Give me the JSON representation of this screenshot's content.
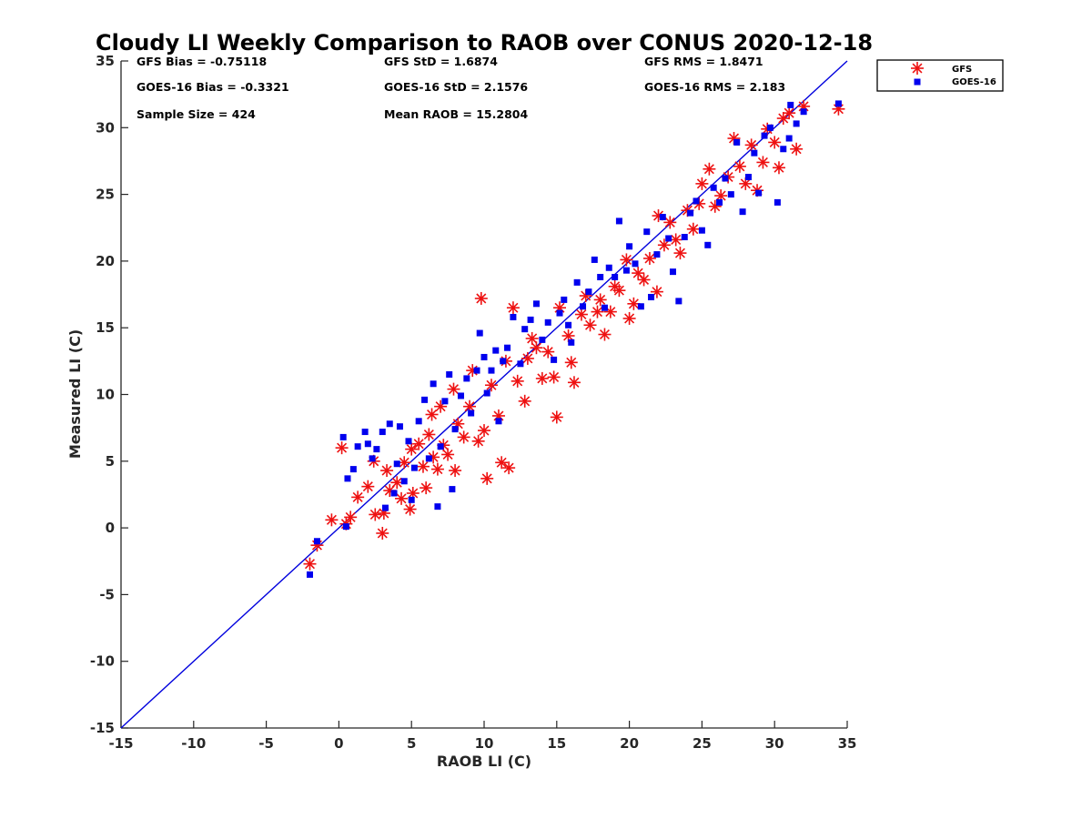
{
  "chart_data": {
    "type": "scatter",
    "title": "Cloudy LI Weekly Comparison to RAOB over CONUS 2020-12-18",
    "xlabel": "RAOB LI (C)",
    "ylabel": "Measured LI (C)",
    "xlim": [
      -15,
      35
    ],
    "ylim": [
      -15,
      35
    ],
    "xticks": [
      "-15",
      "-10",
      "-5",
      "0",
      "5",
      "10",
      "15",
      "20",
      "25",
      "30",
      "35"
    ],
    "yticks": [
      "-15",
      "-10",
      "-5",
      "0",
      "5",
      "10",
      "15",
      "20",
      "25",
      "30",
      "35"
    ],
    "grid": false,
    "legend_position": "outside-top-right",
    "reference_line": {
      "label": "1:1",
      "color": "#0000dd"
    },
    "stats": {
      "col1": [
        "GFS Bias = -0.75118",
        "GOES-16 Bias = -0.3321",
        "Sample Size = 424"
      ],
      "col2": [
        "GFS StD = 1.6874",
        "GOES-16 StD = 2.1576",
        "Mean RAOB = 15.2804"
      ],
      "col3": [
        "GFS RMS = 1.8471",
        "GOES-16 RMS = 2.183"
      ]
    },
    "series": [
      {
        "name": "GFS",
        "marker": "asterisk",
        "color": "#ee1111",
        "points": [
          [
            -2,
            -2.7
          ],
          [
            -1.5,
            -1.3
          ],
          [
            -0.5,
            0.6
          ],
          [
            0.2,
            6
          ],
          [
            0.5,
            0.3
          ],
          [
            0.8,
            0.8
          ],
          [
            1.3,
            2.3
          ],
          [
            2,
            3.1
          ],
          [
            2.4,
            5
          ],
          [
            2.5,
            1
          ],
          [
            3,
            -0.4
          ],
          [
            3.1,
            1.1
          ],
          [
            3.3,
            4.3
          ],
          [
            3.5,
            2.8
          ],
          [
            4,
            3.4
          ],
          [
            4.3,
            2.2
          ],
          [
            4.5,
            4.9
          ],
          [
            4.9,
            1.4
          ],
          [
            5,
            5.9
          ],
          [
            5.1,
            2.6
          ],
          [
            5.5,
            6.3
          ],
          [
            5.8,
            4.6
          ],
          [
            6,
            3
          ],
          [
            6.2,
            7
          ],
          [
            6.4,
            8.5
          ],
          [
            6.5,
            5.3
          ],
          [
            6.8,
            4.4
          ],
          [
            7,
            9.1
          ],
          [
            7.2,
            6.2
          ],
          [
            7.5,
            5.5
          ],
          [
            7.9,
            10.4
          ],
          [
            8,
            4.3
          ],
          [
            8.2,
            7.8
          ],
          [
            8.6,
            6.8
          ],
          [
            9,
            9.1
          ],
          [
            9.2,
            11.8
          ],
          [
            9.6,
            6.5
          ],
          [
            9.8,
            17.2
          ],
          [
            10,
            7.3
          ],
          [
            10.2,
            3.7
          ],
          [
            10.5,
            10.7
          ],
          [
            11,
            8.4
          ],
          [
            11.2,
            4.9
          ],
          [
            11.5,
            12.5
          ],
          [
            11.7,
            4.5
          ],
          [
            12,
            16.5
          ],
          [
            12.3,
            11
          ],
          [
            12.8,
            9.5
          ],
          [
            13,
            12.7
          ],
          [
            13.3,
            14.2
          ],
          [
            13.6,
            13.5
          ],
          [
            14,
            11.2
          ],
          [
            14.4,
            13.2
          ],
          [
            14.8,
            11.3
          ],
          [
            15,
            8.3
          ],
          [
            15.2,
            16.5
          ],
          [
            15.8,
            14.4
          ],
          [
            16,
            12.4
          ],
          [
            16.2,
            10.9
          ],
          [
            16.7,
            16
          ],
          [
            17,
            17.4
          ],
          [
            17.3,
            15.2
          ],
          [
            17.8,
            16.2
          ],
          [
            18,
            17.1
          ],
          [
            18.3,
            14.5
          ],
          [
            18.7,
            16.2
          ],
          [
            19,
            18.1
          ],
          [
            19.3,
            17.8
          ],
          [
            19.8,
            20.1
          ],
          [
            20,
            15.7
          ],
          [
            20.3,
            16.8
          ],
          [
            20.6,
            19.1
          ],
          [
            21,
            18.6
          ],
          [
            21.4,
            20.2
          ],
          [
            21.9,
            17.7
          ],
          [
            22,
            23.4
          ],
          [
            22.4,
            21.2
          ],
          [
            22.8,
            22.9
          ],
          [
            23.2,
            21.6
          ],
          [
            23.5,
            20.6
          ],
          [
            24,
            23.8
          ],
          [
            24.4,
            22.4
          ],
          [
            24.8,
            24.3
          ],
          [
            25,
            25.8
          ],
          [
            25.5,
            26.9
          ],
          [
            25.9,
            24.1
          ],
          [
            26.3,
            24.9
          ],
          [
            26.8,
            26.3
          ],
          [
            27.2,
            29.2
          ],
          [
            27.6,
            27.1
          ],
          [
            28,
            25.8
          ],
          [
            28.4,
            28.7
          ],
          [
            28.8,
            25.3
          ],
          [
            29.2,
            27.4
          ],
          [
            29.5,
            29.9
          ],
          [
            30,
            28.9
          ],
          [
            30.3,
            27
          ],
          [
            30.6,
            30.7
          ],
          [
            31,
            31.1
          ],
          [
            31.5,
            28.4
          ],
          [
            32,
            31.6
          ],
          [
            34.4,
            31.4
          ]
        ]
      },
      {
        "name": "GOES-16",
        "marker": "square",
        "color": "#0000ee",
        "points": [
          [
            -2,
            -3.5
          ],
          [
            -1.5,
            -1
          ],
          [
            0.3,
            6.8
          ],
          [
            0.5,
            0.1
          ],
          [
            0.6,
            3.7
          ],
          [
            1,
            4.4
          ],
          [
            1.3,
            6.1
          ],
          [
            1.8,
            7.2
          ],
          [
            2,
            6.3
          ],
          [
            2.3,
            5.2
          ],
          [
            2.6,
            5.9
          ],
          [
            3,
            7.2
          ],
          [
            3.2,
            1.5
          ],
          [
            3.5,
            7.8
          ],
          [
            3.8,
            2.6
          ],
          [
            4,
            4.8
          ],
          [
            4.2,
            7.6
          ],
          [
            4.5,
            3.5
          ],
          [
            4.8,
            6.5
          ],
          [
            5,
            2.1
          ],
          [
            5.2,
            4.5
          ],
          [
            5.5,
            8
          ],
          [
            5.9,
            9.6
          ],
          [
            6.2,
            5.2
          ],
          [
            6.5,
            10.8
          ],
          [
            6.8,
            1.6
          ],
          [
            7,
            6.1
          ],
          [
            7.3,
            9.5
          ],
          [
            7.6,
            11.5
          ],
          [
            7.8,
            2.9
          ],
          [
            8,
            7.4
          ],
          [
            8.4,
            9.9
          ],
          [
            8.8,
            11.2
          ],
          [
            9.1,
            8.6
          ],
          [
            9.5,
            11.8
          ],
          [
            9.7,
            14.6
          ],
          [
            10,
            12.8
          ],
          [
            10.2,
            10.1
          ],
          [
            10.5,
            11.8
          ],
          [
            10.8,
            13.3
          ],
          [
            11,
            8
          ],
          [
            11.3,
            12.5
          ],
          [
            11.6,
            13.5
          ],
          [
            12,
            15.8
          ],
          [
            12.5,
            12.3
          ],
          [
            12.8,
            14.9
          ],
          [
            13.2,
            15.6
          ],
          [
            13.6,
            16.8
          ],
          [
            14,
            14.1
          ],
          [
            14.4,
            15.4
          ],
          [
            14.8,
            12.6
          ],
          [
            15.2,
            16.1
          ],
          [
            15.5,
            17.1
          ],
          [
            15.8,
            15.2
          ],
          [
            16,
            13.9
          ],
          [
            16.4,
            18.4
          ],
          [
            16.8,
            16.6
          ],
          [
            17.2,
            17.7
          ],
          [
            17.6,
            20.1
          ],
          [
            18,
            18.8
          ],
          [
            18.3,
            16.5
          ],
          [
            18.6,
            19.5
          ],
          [
            19,
            18.8
          ],
          [
            19.3,
            23
          ],
          [
            19.8,
            19.3
          ],
          [
            20,
            21.1
          ],
          [
            20.4,
            19.8
          ],
          [
            20.8,
            16.6
          ],
          [
            21.2,
            22.2
          ],
          [
            21.5,
            17.3
          ],
          [
            21.9,
            20.5
          ],
          [
            22.3,
            23.3
          ],
          [
            22.7,
            21.7
          ],
          [
            23,
            19.2
          ],
          [
            23.4,
            17
          ],
          [
            23.8,
            21.8
          ],
          [
            24.2,
            23.6
          ],
          [
            24.6,
            24.5
          ],
          [
            25,
            22.3
          ],
          [
            25.4,
            21.2
          ],
          [
            25.8,
            25.5
          ],
          [
            26.2,
            24.4
          ],
          [
            26.6,
            26.2
          ],
          [
            27,
            25
          ],
          [
            27.4,
            28.9
          ],
          [
            27.8,
            23.7
          ],
          [
            28.2,
            26.3
          ],
          [
            28.6,
            28.1
          ],
          [
            28.9,
            25.1
          ],
          [
            29.3,
            29.4
          ],
          [
            29.7,
            30
          ],
          [
            30.2,
            24.4
          ],
          [
            30.6,
            28.4
          ],
          [
            31,
            29.2
          ],
          [
            31.1,
            31.7
          ],
          [
            31.5,
            30.3
          ],
          [
            32,
            31.2
          ],
          [
            34.4,
            31.8
          ]
        ]
      }
    ]
  }
}
